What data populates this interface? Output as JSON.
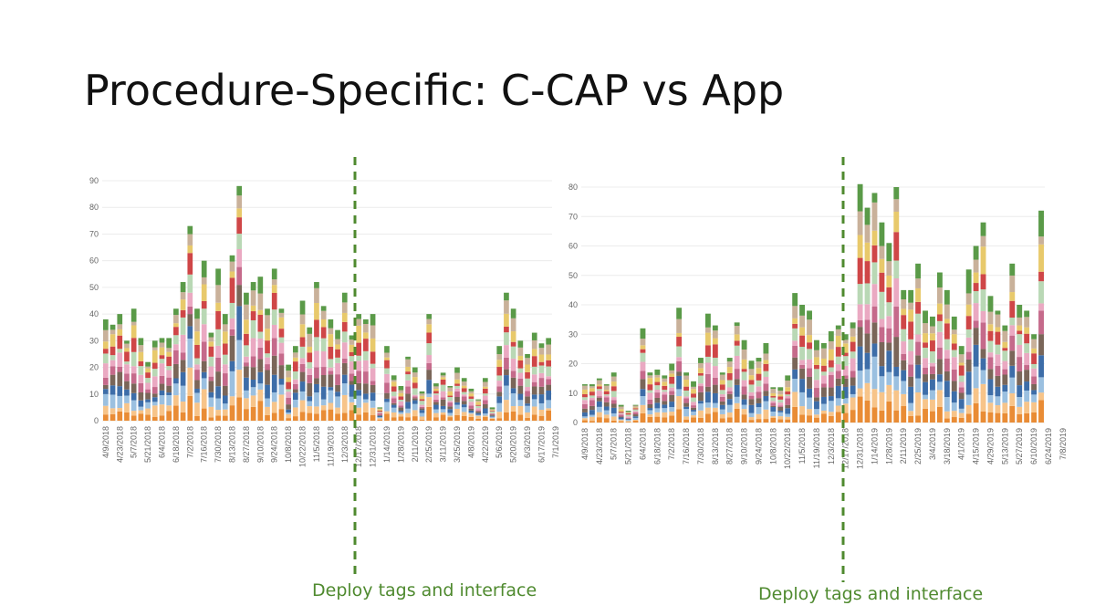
{
  "slide": {
    "title": "Procedure-Specific: C-CAP vs App",
    "annotation_left": "Deploy tags and interface",
    "annotation_right": "Deploy tags and interface"
  },
  "colors": {
    "palette": [
      "#e98c35",
      "#f7c489",
      "#9bc0e0",
      "#3d6da8",
      "#7a6659",
      "#c56a8b",
      "#eaa9c2",
      "#b9d8b5",
      "#cf4647",
      "#e8c96b",
      "#c9b19a",
      "#5a9a48"
    ],
    "deploy_line": "#4f8a2f",
    "grid": "#ececec",
    "tick_text": "#666666"
  },
  "chart_data": [
    {
      "name": "C-CAP",
      "type": "bar",
      "stacked": true,
      "ylim": [
        0,
        90
      ],
      "yticks": [
        0,
        10,
        20,
        30,
        40,
        50,
        60,
        70,
        80,
        90
      ],
      "title": "",
      "xlabel": "",
      "ylabel": "",
      "deploy_after_index": 38,
      "tick_labels": [
        "4/9/2018",
        "4/23/2018",
        "5/7/2018",
        "5/21/2018",
        "6/4/2018",
        "6/18/2018",
        "7/2/2018",
        "7/16/2018",
        "7/30/2018",
        "8/13/2018",
        "8/27/2018",
        "9/10/2018",
        "9/24/2018",
        "10/8/2018",
        "10/22/2018",
        "11/5/2018",
        "11/19/2018",
        "12/3/2018",
        "12/17/2018",
        "12/31/2018",
        "1/14/2019",
        "1/28/2019",
        "2/11/2019",
        "2/25/2019",
        "3/11/2019",
        "3/25/2019",
        "4/8/2019",
        "4/22/2019",
        "5/6/2019",
        "5/20/2019",
        "6/3/2019",
        "6/17/2019",
        "7/1/2019"
      ],
      "totals": [
        38,
        36,
        40,
        30,
        42,
        31,
        22,
        30,
        31,
        31,
        42,
        52,
        73,
        42,
        60,
        33,
        57,
        40,
        62,
        88,
        48,
        52,
        54,
        42,
        57,
        42,
        21,
        28,
        45,
        35,
        52,
        43,
        38,
        34,
        48,
        32,
        40,
        38,
        40,
        5,
        28,
        17,
        13,
        24,
        20,
        11,
        40,
        14,
        18,
        13,
        20,
        16,
        12,
        8,
        16,
        5,
        28,
        48,
        42,
        30,
        25,
        33,
        29,
        31
      ],
      "total_label_unit": "count"
    },
    {
      "name": "App",
      "type": "bar",
      "stacked": true,
      "ylim": [
        0,
        80
      ],
      "yticks": [
        0,
        10,
        20,
        30,
        40,
        50,
        60,
        70,
        80
      ],
      "title": "",
      "xlabel": "",
      "ylabel": "",
      "deploy_after_index": 38,
      "tick_labels": [
        "4/9/2018",
        "4/23/2018",
        "5/7/2018",
        "5/21/2018",
        "6/4/2018",
        "6/18/2018",
        "7/2/2018",
        "7/16/2018",
        "7/30/2018",
        "8/13/2018",
        "8/27/2018",
        "9/10/2018",
        "9/24/2018",
        "10/8/2018",
        "10/22/2018",
        "11/5/2018",
        "11/19/2018",
        "12/3/2018",
        "12/17/2018",
        "12/31/2018",
        "1/14/2019",
        "1/28/2019",
        "2/11/2019",
        "2/25/2019",
        "3/4/2019",
        "3/18/2019",
        "4/1/2019",
        "4/15/2019",
        "4/29/2019",
        "5/13/2019",
        "5/27/2019",
        "6/10/2019",
        "6/24/2019",
        "7/8/2019"
      ],
      "totals": [
        13,
        13,
        15,
        13,
        17,
        6,
        4,
        6,
        32,
        17,
        18,
        16,
        20,
        39,
        17,
        14,
        22,
        37,
        33,
        17,
        22,
        34,
        28,
        21,
        22,
        27,
        12,
        12,
        16,
        44,
        40,
        38,
        28,
        27,
        31,
        33,
        30,
        34,
        81,
        73,
        78,
        68,
        61,
        80,
        45,
        45,
        54,
        38,
        36,
        51,
        45,
        36,
        26,
        52,
        60,
        68,
        43,
        38,
        33,
        54,
        40,
        38,
        30,
        72
      ]
    }
  ]
}
